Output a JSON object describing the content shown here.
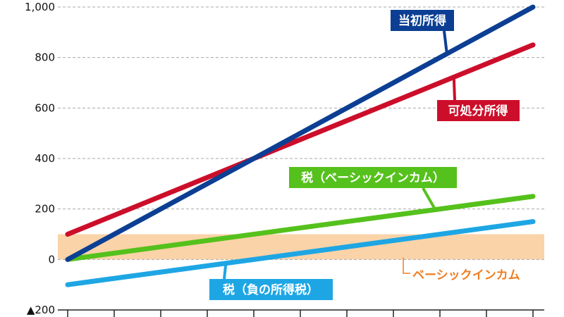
{
  "chart_data": {
    "type": "line",
    "ylim": [
      -200,
      1000
    ],
    "y_ticks": [
      -200,
      0,
      200,
      400,
      600,
      800,
      1000
    ],
    "y_tick_labels": [
      "▲200",
      "0",
      "200",
      "400",
      "600",
      "800",
      "1,000"
    ],
    "x_tick_count": 11,
    "grid": "horizontal-dashed",
    "x": [
      0,
      1
    ],
    "series": [
      {
        "name": "当初所得",
        "values": [
          0,
          1000
        ],
        "color": "#0c3f93"
      },
      {
        "name": "可処分所得",
        "values": [
          100,
          850
        ],
        "color": "#cc0e2a"
      },
      {
        "name": "税（ベーシックインカム）",
        "values": [
          0,
          250
        ],
        "color": "#55c11c"
      },
      {
        "name": "税（負の所得税）",
        "values": [
          -100,
          150
        ],
        "color": "#1ea6e4"
      }
    ],
    "band": {
      "name": "ベーシックインカム",
      "y_range": [
        0,
        100
      ],
      "fill": "#fbd3a8",
      "text_color": "#ee7d22"
    }
  }
}
